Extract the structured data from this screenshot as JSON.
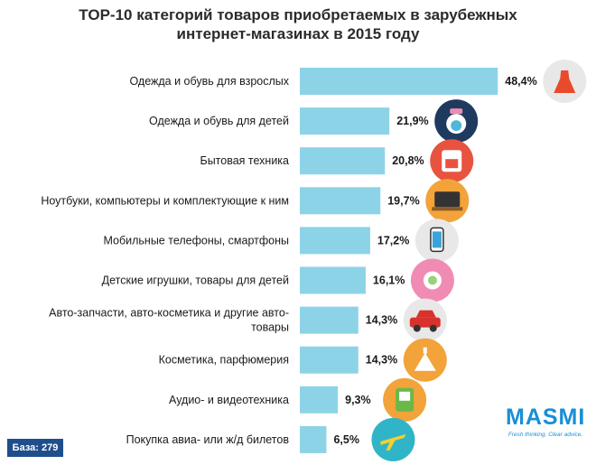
{
  "chart_data": {
    "type": "bar",
    "orientation": "horizontal",
    "title_line1": "TOP-10 категорий товаров приобретаемых в зарубежных",
    "title_line2": "интернет-магазинах в 2015 году",
    "categories": [
      [
        "Одежда и обувь для взрослых"
      ],
      [
        "Одежда и обувь для детей"
      ],
      [
        "Бытовая техника"
      ],
      [
        "Ноутбуки, компьютеры и комплектующие к ним"
      ],
      [
        "Мобильные телефоны, смартфоны"
      ],
      [
        "Детские игрушки, товары для детей"
      ],
      [
        "Авто-запчасти, авто-косметика и другие авто-",
        "товары"
      ],
      [
        "Косметика, парфюмерия"
      ],
      [
        "Аудио- и видеотехника"
      ],
      [
        "Покупка авиа- или ж/д билетов"
      ]
    ],
    "values": [
      48.4,
      21.9,
      20.8,
      19.7,
      17.2,
      16.1,
      14.3,
      14.3,
      9.3,
      6.5
    ],
    "value_labels": [
      "48,4%",
      "21,9%",
      "20,8%",
      "19,7%",
      "17,2%",
      "16,1%",
      "14,3%",
      "14,3%",
      "9,3%",
      "6,5%"
    ],
    "icons": [
      "dress-icon",
      "baby-bib-icon",
      "kitchen-appliance-icon",
      "laptop-icon",
      "smartphone-icon",
      "pacifier-icon",
      "car-icon",
      "perfume-icon",
      "media-player-icon",
      "airplane-icon"
    ],
    "bar_color": "#8dd3e8"
  },
  "footer": {
    "base_label": "База: 279"
  },
  "brand": {
    "name": "MASMI",
    "tagline": "Fresh thinking. Clear advice.",
    "color": "#1a8fd6"
  }
}
